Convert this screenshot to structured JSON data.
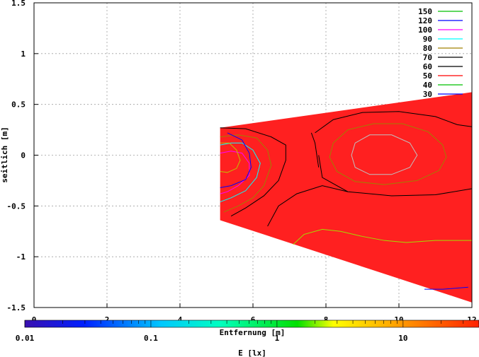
{
  "chart_data": {
    "type": "heatmap",
    "title": "",
    "xlabel": "Entfernung [m]",
    "ylabel": "seitlich [m]",
    "xlim": [
      0,
      12
    ],
    "ylim": [
      -1.5,
      1.5
    ],
    "x_ticks": [
      "0",
      "2",
      "4",
      "6",
      "8",
      "10",
      "12"
    ],
    "y_ticks": [
      "1.5",
      "1",
      "0.5",
      "0",
      "-0.5",
      "-1",
      "-1.5"
    ],
    "grid": true,
    "legend_position": "top-right",
    "region": [
      [
        5.1,
        0.27
      ],
      [
        12.0,
        0.62
      ],
      [
        12.0,
        -1.45
      ],
      [
        5.1,
        -0.64
      ]
    ],
    "contour_levels": [
      {
        "label": "150",
        "color": "#00c000"
      },
      {
        "label": "120",
        "color": "#0000ff"
      },
      {
        "label": "100",
        "color": "#ff00ff"
      },
      {
        "label": "90",
        "color": "#00ffff"
      },
      {
        "label": "80",
        "color": "#a08000"
      },
      {
        "label": "70",
        "color": "#000000"
      },
      {
        "label": "60",
        "color": "#000000"
      },
      {
        "label": "50",
        "color": "#ff0000"
      },
      {
        "label": "40",
        "color": "#00c000"
      },
      {
        "label": "30",
        "color": "#0000ff"
      }
    ],
    "contours": [
      {
        "color": "#c0c0c0",
        "points": [
          [
            8.8,
            0.12
          ],
          [
            9.2,
            0.2
          ],
          [
            9.8,
            0.2
          ],
          [
            10.3,
            0.12
          ],
          [
            10.5,
            0.0
          ],
          [
            10.3,
            -0.12
          ],
          [
            9.8,
            -0.19
          ],
          [
            9.2,
            -0.19
          ],
          [
            8.8,
            -0.12
          ],
          [
            8.7,
            0.0
          ],
          [
            8.8,
            0.12
          ]
        ]
      },
      {
        "color": "#a08000",
        "points": [
          [
            8.2,
            0.12
          ],
          [
            8.6,
            0.25
          ],
          [
            9.3,
            0.31
          ],
          [
            10.1,
            0.31
          ],
          [
            10.8,
            0.23
          ],
          [
            11.2,
            0.1
          ],
          [
            11.3,
            -0.02
          ],
          [
            11.1,
            -0.15
          ],
          [
            10.5,
            -0.25
          ],
          [
            9.6,
            -0.29
          ],
          [
            8.8,
            -0.26
          ],
          [
            8.3,
            -0.16
          ],
          [
            8.1,
            -0.02
          ],
          [
            8.2,
            0.12
          ]
        ]
      },
      {
        "color": "#000000",
        "points": [
          [
            7.7,
            0.22
          ],
          [
            8.2,
            0.35
          ],
          [
            9.0,
            0.42
          ],
          [
            10.0,
            0.43
          ],
          [
            11.0,
            0.38
          ],
          [
            11.6,
            0.3
          ],
          [
            12.0,
            0.28
          ]
        ]
      },
      {
        "color": "#000000",
        "points": [
          [
            7.8,
            0.0
          ],
          [
            7.9,
            -0.22
          ],
          [
            8.6,
            -0.36
          ],
          [
            9.8,
            -0.4
          ],
          [
            11.0,
            -0.39
          ],
          [
            12.0,
            -0.33
          ]
        ]
      },
      {
        "color": "#000000",
        "points": [
          [
            7.6,
            0.22
          ],
          [
            7.7,
            0.12
          ],
          [
            7.75,
            0.0
          ],
          [
            7.8,
            -0.12
          ]
        ]
      },
      {
        "color": "#000000",
        "points": [
          [
            6.4,
            -0.7
          ],
          [
            6.7,
            -0.5
          ],
          [
            7.2,
            -0.38
          ],
          [
            7.9,
            -0.3
          ],
          [
            8.6,
            -0.36
          ]
        ]
      },
      {
        "color": "#000000",
        "points": [
          [
            5.1,
            0.27
          ],
          [
            5.8,
            0.26
          ],
          [
            6.5,
            0.18
          ],
          [
            6.9,
            0.1
          ],
          [
            6.9,
            -0.05
          ],
          [
            6.7,
            -0.25
          ],
          [
            6.3,
            -0.4
          ],
          [
            5.8,
            -0.52
          ],
          [
            5.4,
            -0.6
          ]
        ]
      },
      {
        "color": "#a08000",
        "points": [
          [
            5.1,
            0.18
          ],
          [
            5.6,
            0.2
          ],
          [
            6.1,
            0.17
          ],
          [
            6.4,
            0.05
          ],
          [
            6.5,
            -0.1
          ],
          [
            6.3,
            -0.3
          ],
          [
            6.0,
            -0.42
          ],
          [
            5.6,
            -0.5
          ],
          [
            5.2,
            -0.56
          ]
        ]
      },
      {
        "color": "#00ffff",
        "points": [
          [
            5.1,
            0.1
          ],
          [
            5.4,
            0.12
          ],
          [
            5.7,
            0.12
          ],
          [
            6.0,
            0.05
          ],
          [
            6.2,
            -0.08
          ],
          [
            6.1,
            -0.22
          ],
          [
            5.8,
            -0.35
          ],
          [
            5.4,
            -0.42
          ],
          [
            5.1,
            -0.46
          ]
        ]
      },
      {
        "color": "#ff00ff",
        "points": [
          [
            5.1,
            0.02
          ],
          [
            5.4,
            0.04
          ],
          [
            5.7,
            0.02
          ],
          [
            5.9,
            -0.08
          ],
          [
            5.9,
            -0.2
          ],
          [
            5.6,
            -0.3
          ],
          [
            5.3,
            -0.36
          ],
          [
            5.1,
            -0.38
          ]
        ]
      },
      {
        "color": "#0000ff",
        "points": [
          [
            5.3,
            0.22
          ],
          [
            5.7,
            0.15
          ],
          [
            5.9,
            0.02
          ],
          [
            5.95,
            -0.12
          ],
          [
            5.8,
            -0.24
          ],
          [
            5.4,
            -0.3
          ],
          [
            5.1,
            -0.32
          ]
        ]
      },
      {
        "color": "#c0c000",
        "points": [
          [
            5.1,
            0.12
          ],
          [
            5.35,
            0.12
          ],
          [
            5.55,
            0.05
          ],
          [
            5.65,
            -0.05
          ],
          [
            5.55,
            -0.13
          ],
          [
            5.3,
            -0.17
          ],
          [
            5.1,
            -0.16
          ]
        ]
      },
      {
        "color": "#a0e000",
        "points": [
          [
            7.1,
            -0.88
          ],
          [
            7.4,
            -0.78
          ],
          [
            7.9,
            -0.73
          ],
          [
            8.4,
            -0.75
          ],
          [
            9.0,
            -0.8
          ],
          [
            9.6,
            -0.84
          ],
          [
            10.2,
            -0.86
          ],
          [
            11.0,
            -0.84
          ],
          [
            12.0,
            -0.84
          ]
        ]
      },
      {
        "color": "#0000ff",
        "points": [
          [
            10.7,
            -1.32
          ],
          [
            11.2,
            -1.32
          ],
          [
            11.9,
            -1.3
          ]
        ]
      }
    ],
    "colorbar": {
      "label": "E [lx]",
      "ticks": [
        "0.01",
        "0.1",
        "1",
        "10"
      ],
      "scale": "log",
      "range": [
        0.01,
        40
      ]
    }
  }
}
